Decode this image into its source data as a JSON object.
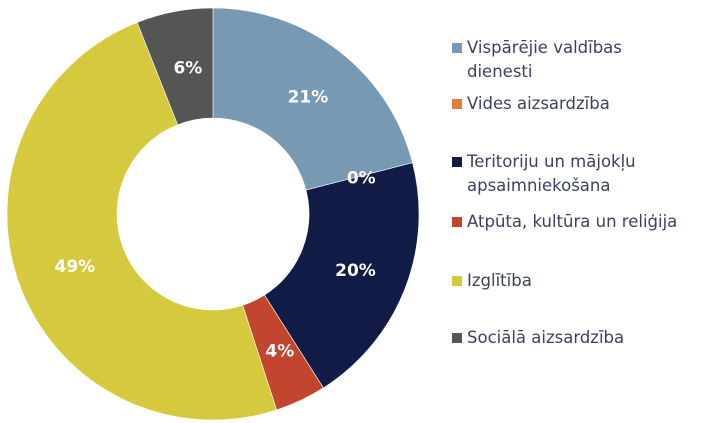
{
  "chart_data": {
    "type": "donut",
    "categories": [
      "Vispārējie valdības dienesti",
      "Vides aizsardzība",
      "Teritoriju un mājokļu apsaimniekošana",
      "Atpūta, kultūra un reliģija",
      "Izglītība",
      "Sociālā aizsardzība"
    ],
    "values": [
      21,
      0,
      20,
      4,
      49,
      6
    ],
    "value_labels": [
      "21%",
      "0%",
      "20%",
      "4%",
      "49%",
      "6%"
    ],
    "colors": [
      "#7799b4",
      "#e8793a",
      "#101c45",
      "#c1452f",
      "#d5c93d",
      "#555555"
    ],
    "legend": "right"
  }
}
